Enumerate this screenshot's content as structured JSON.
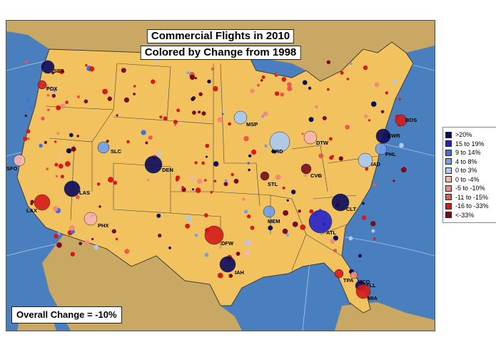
{
  "title": {
    "line1": "Commercial Flights in 2010",
    "line2": "Colored by Change from 1998"
  },
  "overall": "Overall Change = -10%",
  "colors": {
    "ocean": "#4a7fbf",
    "land_us": "#f2c25f",
    "land_other": "#c9a864",
    "border": "#333333"
  },
  "legend": [
    {
      "label": ">20%",
      "color": "#0a0a5e"
    },
    {
      "label": "15 to 19%",
      "color": "#2222cc"
    },
    {
      "label": "9 to 14%",
      "color": "#3f6fe0"
    },
    {
      "label": "4 to 8%",
      "color": "#6e9ff0"
    },
    {
      "label": "0 to 3%",
      "color": "#a9cbf5"
    },
    {
      "label": "0 to -4%",
      "color": "#f7b5b0"
    },
    {
      "label": "-5 to -10%",
      "color": "#f28880"
    },
    {
      "label": "-11 to -15%",
      "color": "#ec5550"
    },
    {
      "label": "-16 to -33%",
      "color": "#d61a1a"
    },
    {
      "label": "<-33%",
      "color": "#7a0b1c"
    }
  ],
  "airports": [
    {
      "code": "SEA",
      "category": ">20%"
    },
    {
      "code": "PDX",
      "category": "-16 to -33%"
    },
    {
      "code": "SFO",
      "category": "0 to -4%"
    },
    {
      "code": "LAX",
      "category": "-16 to -33%"
    },
    {
      "code": "LAS",
      "category": ">20%"
    },
    {
      "code": "PHX",
      "category": "0 to -4%"
    },
    {
      "code": "SLC",
      "category": "4 to 8%"
    },
    {
      "code": "DEN",
      "category": ">20%"
    },
    {
      "code": "DFW",
      "category": "-16 to -33%"
    },
    {
      "code": "IAH",
      "category": ">20%"
    },
    {
      "code": "MSP",
      "category": "0 to 3%"
    },
    {
      "code": "STL",
      "category": "<-33%"
    },
    {
      "code": "MEM",
      "category": "4 to 8%"
    },
    {
      "code": "ORD",
      "category": "0 to 3%"
    },
    {
      "code": "DTW",
      "category": "0 to -4%"
    },
    {
      "code": "CVG",
      "category": "<-33%"
    },
    {
      "code": "ATL",
      "category": "15 to 19%"
    },
    {
      "code": "CLT",
      "category": ">20%"
    },
    {
      "code": "MCO",
      "category": "-5 to -10%"
    },
    {
      "code": "TPA",
      "category": "-16 to -33%"
    },
    {
      "code": "FLL",
      "category": ">20%"
    },
    {
      "code": "MIA",
      "category": "-16 to -33%"
    },
    {
      "code": "IAD",
      "category": "0 to 3%"
    },
    {
      "code": "PHL",
      "category": "4 to 8%"
    },
    {
      "code": "EWR",
      "category": ">20%"
    },
    {
      "code": "BOS",
      "category": "-16 to -33%"
    }
  ]
}
